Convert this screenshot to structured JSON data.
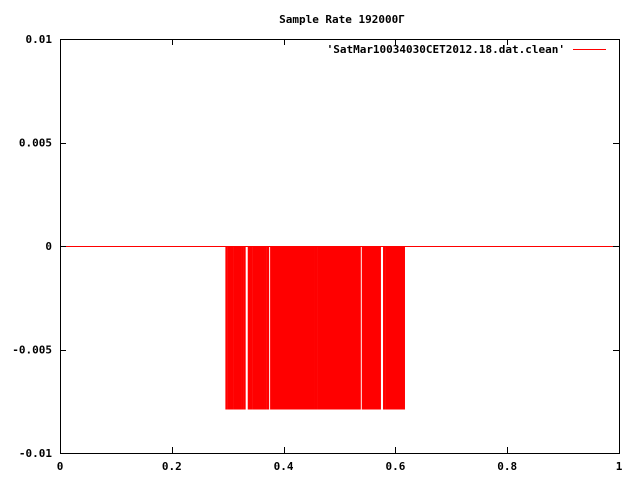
{
  "chart_data": {
    "type": "line",
    "title": "Sample Rate 192000Γ",
    "xlabel": "",
    "ylabel": "",
    "xlim": [
      0,
      1
    ],
    "ylim": [
      -0.01,
      0.01
    ],
    "x_ticks": [
      0,
      0.2,
      0.4,
      0.6,
      0.8,
      1
    ],
    "x_tick_labels": [
      "0",
      "0.2",
      "0.4",
      "0.6",
      "0.8",
      "1"
    ],
    "y_ticks": [
      0.01,
      0.005,
      0,
      -0.005,
      -0.01
    ],
    "y_tick_labels": [
      "0.01",
      "0.005",
      "0",
      "-0.005",
      "-0.01"
    ],
    "grid": false,
    "legend_position": "top-right",
    "series": [
      {
        "name": "'SatMar10034030CET2012.18.dat.clean'",
        "color": "#ff0000",
        "baseline": 0,
        "x": [
          0,
          0.298,
          0.302,
          0.306,
          0.309,
          0.313,
          0.317,
          0.319,
          0.322,
          0.326,
          0.33,
          0.338,
          0.342,
          0.346,
          0.349,
          0.352,
          0.355,
          0.359,
          0.362,
          0.364,
          0.368,
          0.372,
          0.378,
          0.381,
          0.384,
          0.387,
          0.39,
          0.393,
          0.396,
          0.399,
          0.402,
          0.405,
          0.408,
          0.411,
          0.414,
          0.418,
          0.421,
          0.424,
          0.427,
          0.43,
          0.433,
          0.436,
          0.439,
          0.442,
          0.445,
          0.448,
          0.451,
          0.454,
          0.458,
          0.462,
          0.465,
          0.468,
          0.471,
          0.474,
          0.477,
          0.48,
          0.483,
          0.486,
          0.489,
          0.492,
          0.495,
          0.498,
          0.502,
          0.505,
          0.508,
          0.511,
          0.514,
          0.518,
          0.521,
          0.524,
          0.527,
          0.53,
          0.533,
          0.536,
          0.542,
          0.545,
          0.548,
          0.551,
          0.554,
          0.557,
          0.56,
          0.563,
          0.566,
          0.569,
          0.572,
          0.58,
          0.584,
          0.588,
          0.591,
          0.594,
          0.597,
          0.6,
          0.603,
          0.606,
          0.609,
          0.612,
          0.615,
          1
        ],
        "y": [
          0,
          -0.0079,
          -0.0079,
          -0.0079,
          -0.0079,
          -0.0079,
          -0.0079,
          -0.0079,
          -0.0079,
          -0.0079,
          -0.0079,
          -0.0079,
          -0.0079,
          -0.0079,
          -0.0079,
          -0.0079,
          -0.0079,
          -0.0079,
          -0.0079,
          -0.0079,
          -0.0079,
          -0.0079,
          -0.0079,
          -0.0079,
          -0.0079,
          -0.0079,
          -0.0079,
          -0.0079,
          -0.0079,
          -0.0079,
          -0.0079,
          -0.0079,
          -0.0079,
          -0.0079,
          -0.0079,
          -0.0079,
          -0.0079,
          -0.0079,
          -0.0079,
          -0.0079,
          -0.0079,
          -0.0079,
          -0.0079,
          -0.0079,
          -0.0079,
          -0.0079,
          -0.0079,
          -0.0079,
          -0.0079,
          -0.0079,
          -0.0079,
          -0.0079,
          -0.0079,
          -0.0079,
          -0.0079,
          -0.0079,
          -0.0079,
          -0.0079,
          -0.0079,
          -0.0079,
          -0.0079,
          -0.0079,
          -0.0079,
          -0.0079,
          -0.0079,
          -0.0079,
          -0.0079,
          -0.0079,
          -0.0079,
          -0.0079,
          -0.0079,
          -0.0079,
          -0.0079,
          -0.0079,
          -0.0079,
          -0.0079,
          -0.0079,
          -0.0079,
          -0.0079,
          -0.0079,
          -0.0079,
          -0.0079,
          -0.0079,
          -0.0079,
          -0.0079,
          -0.0079,
          -0.0079,
          -0.0079,
          -0.0079,
          -0.0079,
          -0.0079,
          -0.0079,
          -0.0079,
          -0.0079,
          -0.0079,
          -0.0079,
          -0.0079,
          0
        ]
      }
    ]
  }
}
